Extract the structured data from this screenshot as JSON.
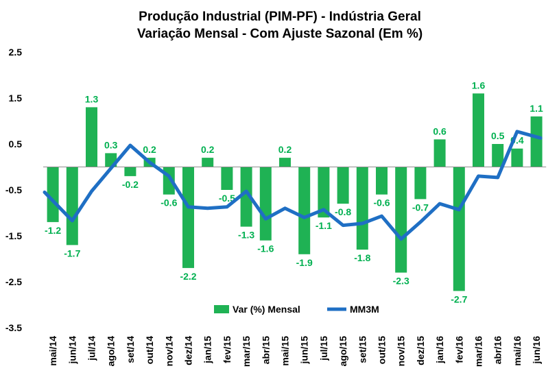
{
  "chart_data": {
    "type": "bar",
    "title_line1": "Produção Industrial (PIM-PF) - Indústria Geral",
    "title_line2": "Variação Mensal - Com Ajuste Sazonal (Em %)",
    "categories": [
      "mai/14",
      "jun/14",
      "jul/14",
      "ago/14",
      "set/14",
      "out/14",
      "nov/14",
      "dez/14",
      "jan/15",
      "fev/15",
      "mar/15",
      "abr/15",
      "mai/15",
      "jun/15",
      "jul/15",
      "ago/15",
      "set/15",
      "out/15",
      "nov/15",
      "dez/15",
      "jan/16",
      "fev/16",
      "mar/16",
      "abr/16",
      "mai/16",
      "jun/16"
    ],
    "series": [
      {
        "name": "Var (%) Mensal",
        "type": "bar",
        "color": "#1fb254",
        "values": [
          -1.2,
          -1.7,
          1.3,
          0.3,
          -0.2,
          0.2,
          -0.6,
          -2.2,
          0.2,
          -0.5,
          -1.3,
          -1.6,
          0.2,
          -1.9,
          -1.1,
          -0.8,
          -1.8,
          -0.6,
          -2.3,
          -0.7,
          0.6,
          -2.7,
          1.6,
          0.5,
          0.4,
          1.1
        ]
      },
      {
        "name": "MM3M",
        "type": "line",
        "color": "#1f6fc4",
        "values": [
          -0.55,
          -1.17,
          -0.53,
          -0.03,
          0.47,
          0.1,
          -0.2,
          -0.87,
          -0.9,
          -0.87,
          -0.53,
          -1.13,
          -0.9,
          -1.1,
          -0.93,
          -1.27,
          -1.23,
          -1.07,
          -1.57,
          -1.2,
          -0.8,
          -0.93,
          -0.2,
          -0.23,
          0.77,
          0.63
        ]
      }
    ],
    "data_labels": [
      "-1.2",
      "-1.7",
      "1.3",
      "0.3",
      "-0.2",
      "0.2",
      "-0.6",
      "-2.2",
      "0.2",
      "-0.5",
      "-1.3",
      "-1.6",
      "0.2",
      "-1.9",
      "-1.1",
      "-0.8",
      "-1.8",
      "-0.6",
      "-2.3",
      "-0.7",
      "0.6",
      "-2.7",
      "1.6",
      "0.5",
      "0.4",
      "1.1"
    ],
    "y_ticks": [
      "2.5",
      "1.5",
      "0.5",
      "-0.5",
      "-1.5",
      "-2.5",
      "-3.5"
    ],
    "ylim": [
      -3.5,
      2.5
    ],
    "grid": false,
    "legend_position": "bottom-center"
  }
}
